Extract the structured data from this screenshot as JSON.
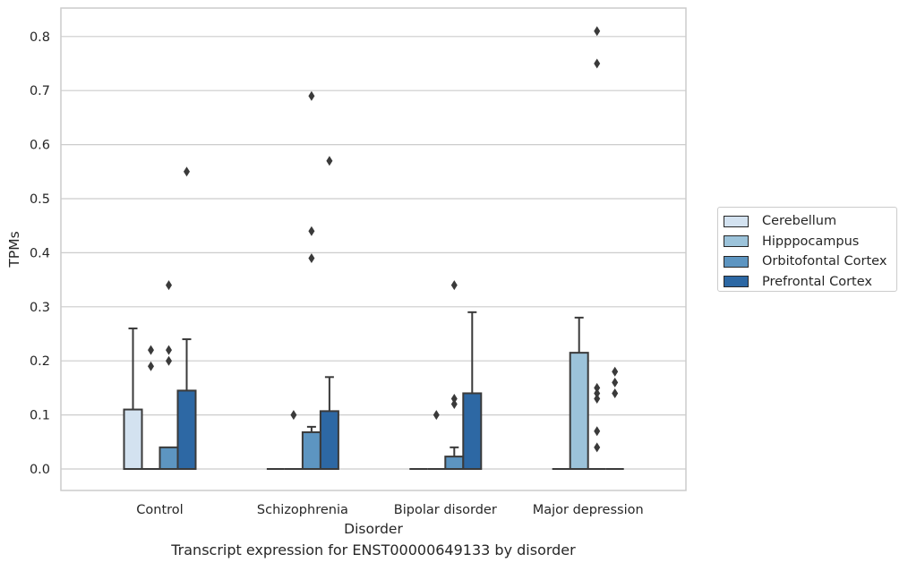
{
  "chart_data": {
    "type": "box",
    "xlabel": "Disorder",
    "ylabel": "TPMs",
    "ylim": [
      -0.04,
      0.853
    ],
    "yticks": [
      "0.0",
      "0.1",
      "0.2",
      "0.3",
      "0.4",
      "0.5",
      "0.6",
      "0.7",
      "0.8"
    ],
    "grid": true,
    "legend_position": "right, outside plot",
    "categories": [
      "Control",
      "Schizophrenia",
      "Bipolar disorder",
      "Major depression"
    ],
    "series": [
      {
        "name": "Cerebellum",
        "color": "#d3e2f0",
        "boxes": [
          {
            "q1": 0.0,
            "median": 0.0,
            "q3": 0.11,
            "whisker_low": 0.0,
            "whisker_high": 0.26,
            "outliers": []
          },
          {
            "q1": 0.0,
            "median": 0.0,
            "q3": 0.0,
            "whisker_low": 0.0,
            "whisker_high": 0.0,
            "outliers": []
          },
          {
            "q1": 0.0,
            "median": 0.0,
            "q3": 0.0,
            "whisker_low": 0.0,
            "whisker_high": 0.0,
            "outliers": []
          },
          {
            "q1": 0.0,
            "median": 0.0,
            "q3": 0.0,
            "whisker_low": 0.0,
            "whisker_high": 0.0,
            "outliers": []
          }
        ]
      },
      {
        "name": "Hipppocampus",
        "color": "#9cc3da",
        "boxes": [
          {
            "q1": 0.0,
            "median": 0.0,
            "q3": 0.0,
            "whisker_low": 0.0,
            "whisker_high": 0.0,
            "outliers": [
              0.19,
              0.22
            ]
          },
          {
            "q1": 0.0,
            "median": 0.0,
            "q3": 0.0,
            "whisker_low": 0.0,
            "whisker_high": 0.0,
            "outliers": [
              0.1
            ]
          },
          {
            "q1": 0.0,
            "median": 0.0,
            "q3": 0.0,
            "whisker_low": 0.0,
            "whisker_high": 0.0,
            "outliers": [
              0.1
            ]
          },
          {
            "q1": 0.0,
            "median": 0.0,
            "q3": 0.215,
            "whisker_low": 0.0,
            "whisker_high": 0.28,
            "outliers": []
          }
        ]
      },
      {
        "name": "Orbitofontal Cortex",
        "color": "#5d95c1",
        "boxes": [
          {
            "q1": 0.0,
            "median": 0.0,
            "q3": 0.04,
            "whisker_low": 0.0,
            "whisker_high": 0.04,
            "outliers": [
              0.2,
              0.22,
              0.34
            ]
          },
          {
            "q1": 0.0,
            "median": 0.0,
            "q3": 0.068,
            "whisker_low": 0.0,
            "whisker_high": 0.078,
            "outliers": [
              0.39,
              0.44,
              0.69
            ]
          },
          {
            "q1": 0.0,
            "median": 0.0,
            "q3": 0.023,
            "whisker_low": 0.0,
            "whisker_high": 0.04,
            "outliers": [
              0.12,
              0.13,
              0.34
            ]
          },
          {
            "q1": 0.0,
            "median": 0.0,
            "q3": 0.0,
            "whisker_low": 0.0,
            "whisker_high": 0.0,
            "outliers": [
              0.13,
              0.14,
              0.04,
              0.07,
              0.15,
              0.75,
              0.81
            ]
          }
        ]
      },
      {
        "name": "Prefrontal Cortex",
        "color": "#2d68a4",
        "boxes": [
          {
            "q1": 0.0,
            "median": 0.0,
            "q3": 0.145,
            "whisker_low": 0.0,
            "whisker_high": 0.24,
            "outliers": [
              0.55
            ]
          },
          {
            "q1": 0.0,
            "median": 0.0,
            "q3": 0.107,
            "whisker_low": 0.0,
            "whisker_high": 0.17,
            "outliers": [
              0.57
            ]
          },
          {
            "q1": 0.0,
            "median": 0.0,
            "q3": 0.14,
            "whisker_low": 0.0,
            "whisker_high": 0.29,
            "outliers": []
          },
          {
            "q1": 0.0,
            "median": 0.0,
            "q3": 0.0,
            "whisker_low": 0.0,
            "whisker_high": 0.0,
            "outliers": [
              0.14,
              0.16,
              0.18
            ]
          }
        ]
      }
    ]
  },
  "caption": "Transcript expression for ENST00000649133 by disorder"
}
